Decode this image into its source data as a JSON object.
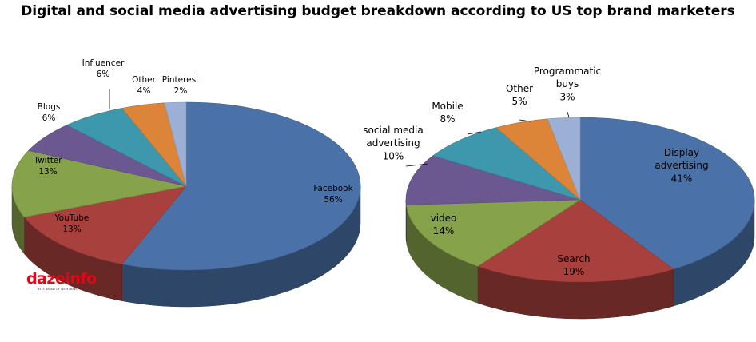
{
  "title": "Digital and social media advertising budget breakdown according to US top brand marketers",
  "logo": {
    "word": "dazeinfo",
    "tagline": "BYTE BASED OF TECH NEWS"
  },
  "chart_data": [
    {
      "type": "pie",
      "name": "left",
      "slices": [
        {
          "label": "Facebook",
          "pct_label": "56%",
          "value": 56,
          "color": "#4a72a8"
        },
        {
          "label": "YouTube",
          "pct_label": "13%",
          "value": 13,
          "color": "#a8403d"
        },
        {
          "label": "Twitter",
          "pct_label": "13%",
          "value": 13,
          "color": "#86a24a"
        },
        {
          "label": "Blogs",
          "pct_label": "6%",
          "value": 6,
          "color": "#6c5890"
        },
        {
          "label": "Influencer",
          "pct_label": "6%",
          "value": 6,
          "color": "#3d98ae"
        },
        {
          "label": "Other",
          "pct_label": "4%",
          "value": 4,
          "color": "#dc8437"
        },
        {
          "label": "Pinterest",
          "pct_label": "2%",
          "value": 2,
          "color": "#9cb0d6"
        }
      ]
    },
    {
      "type": "pie",
      "name": "right",
      "slices": [
        {
          "label": "Display advertising",
          "pct_label": "41%",
          "value": 41,
          "color": "#4a72a8"
        },
        {
          "label": "Search",
          "pct_label": "19%",
          "value": 19,
          "color": "#a8403d"
        },
        {
          "label": "video",
          "pct_label": "14%",
          "value": 14,
          "color": "#86a24a"
        },
        {
          "label": "social media advertising",
          "pct_label": "10%",
          "value": 10,
          "color": "#6c5890"
        },
        {
          "label": "Mobile",
          "pct_label": "8%",
          "value": 8,
          "color": "#3d98ae"
        },
        {
          "label": "Other",
          "pct_label": "5%",
          "value": 5,
          "color": "#dc8437"
        },
        {
          "label": "Programmatic buys",
          "pct_label": "3%",
          "value": 3,
          "color": "#9cb0d6"
        }
      ]
    }
  ]
}
